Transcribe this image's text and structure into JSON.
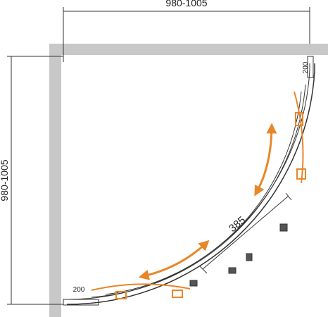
{
  "dimensions": {
    "width": "980-1005",
    "depth": "980-1005",
    "door": "385",
    "profile_top": "200",
    "profile_bottom": "200"
  }
}
